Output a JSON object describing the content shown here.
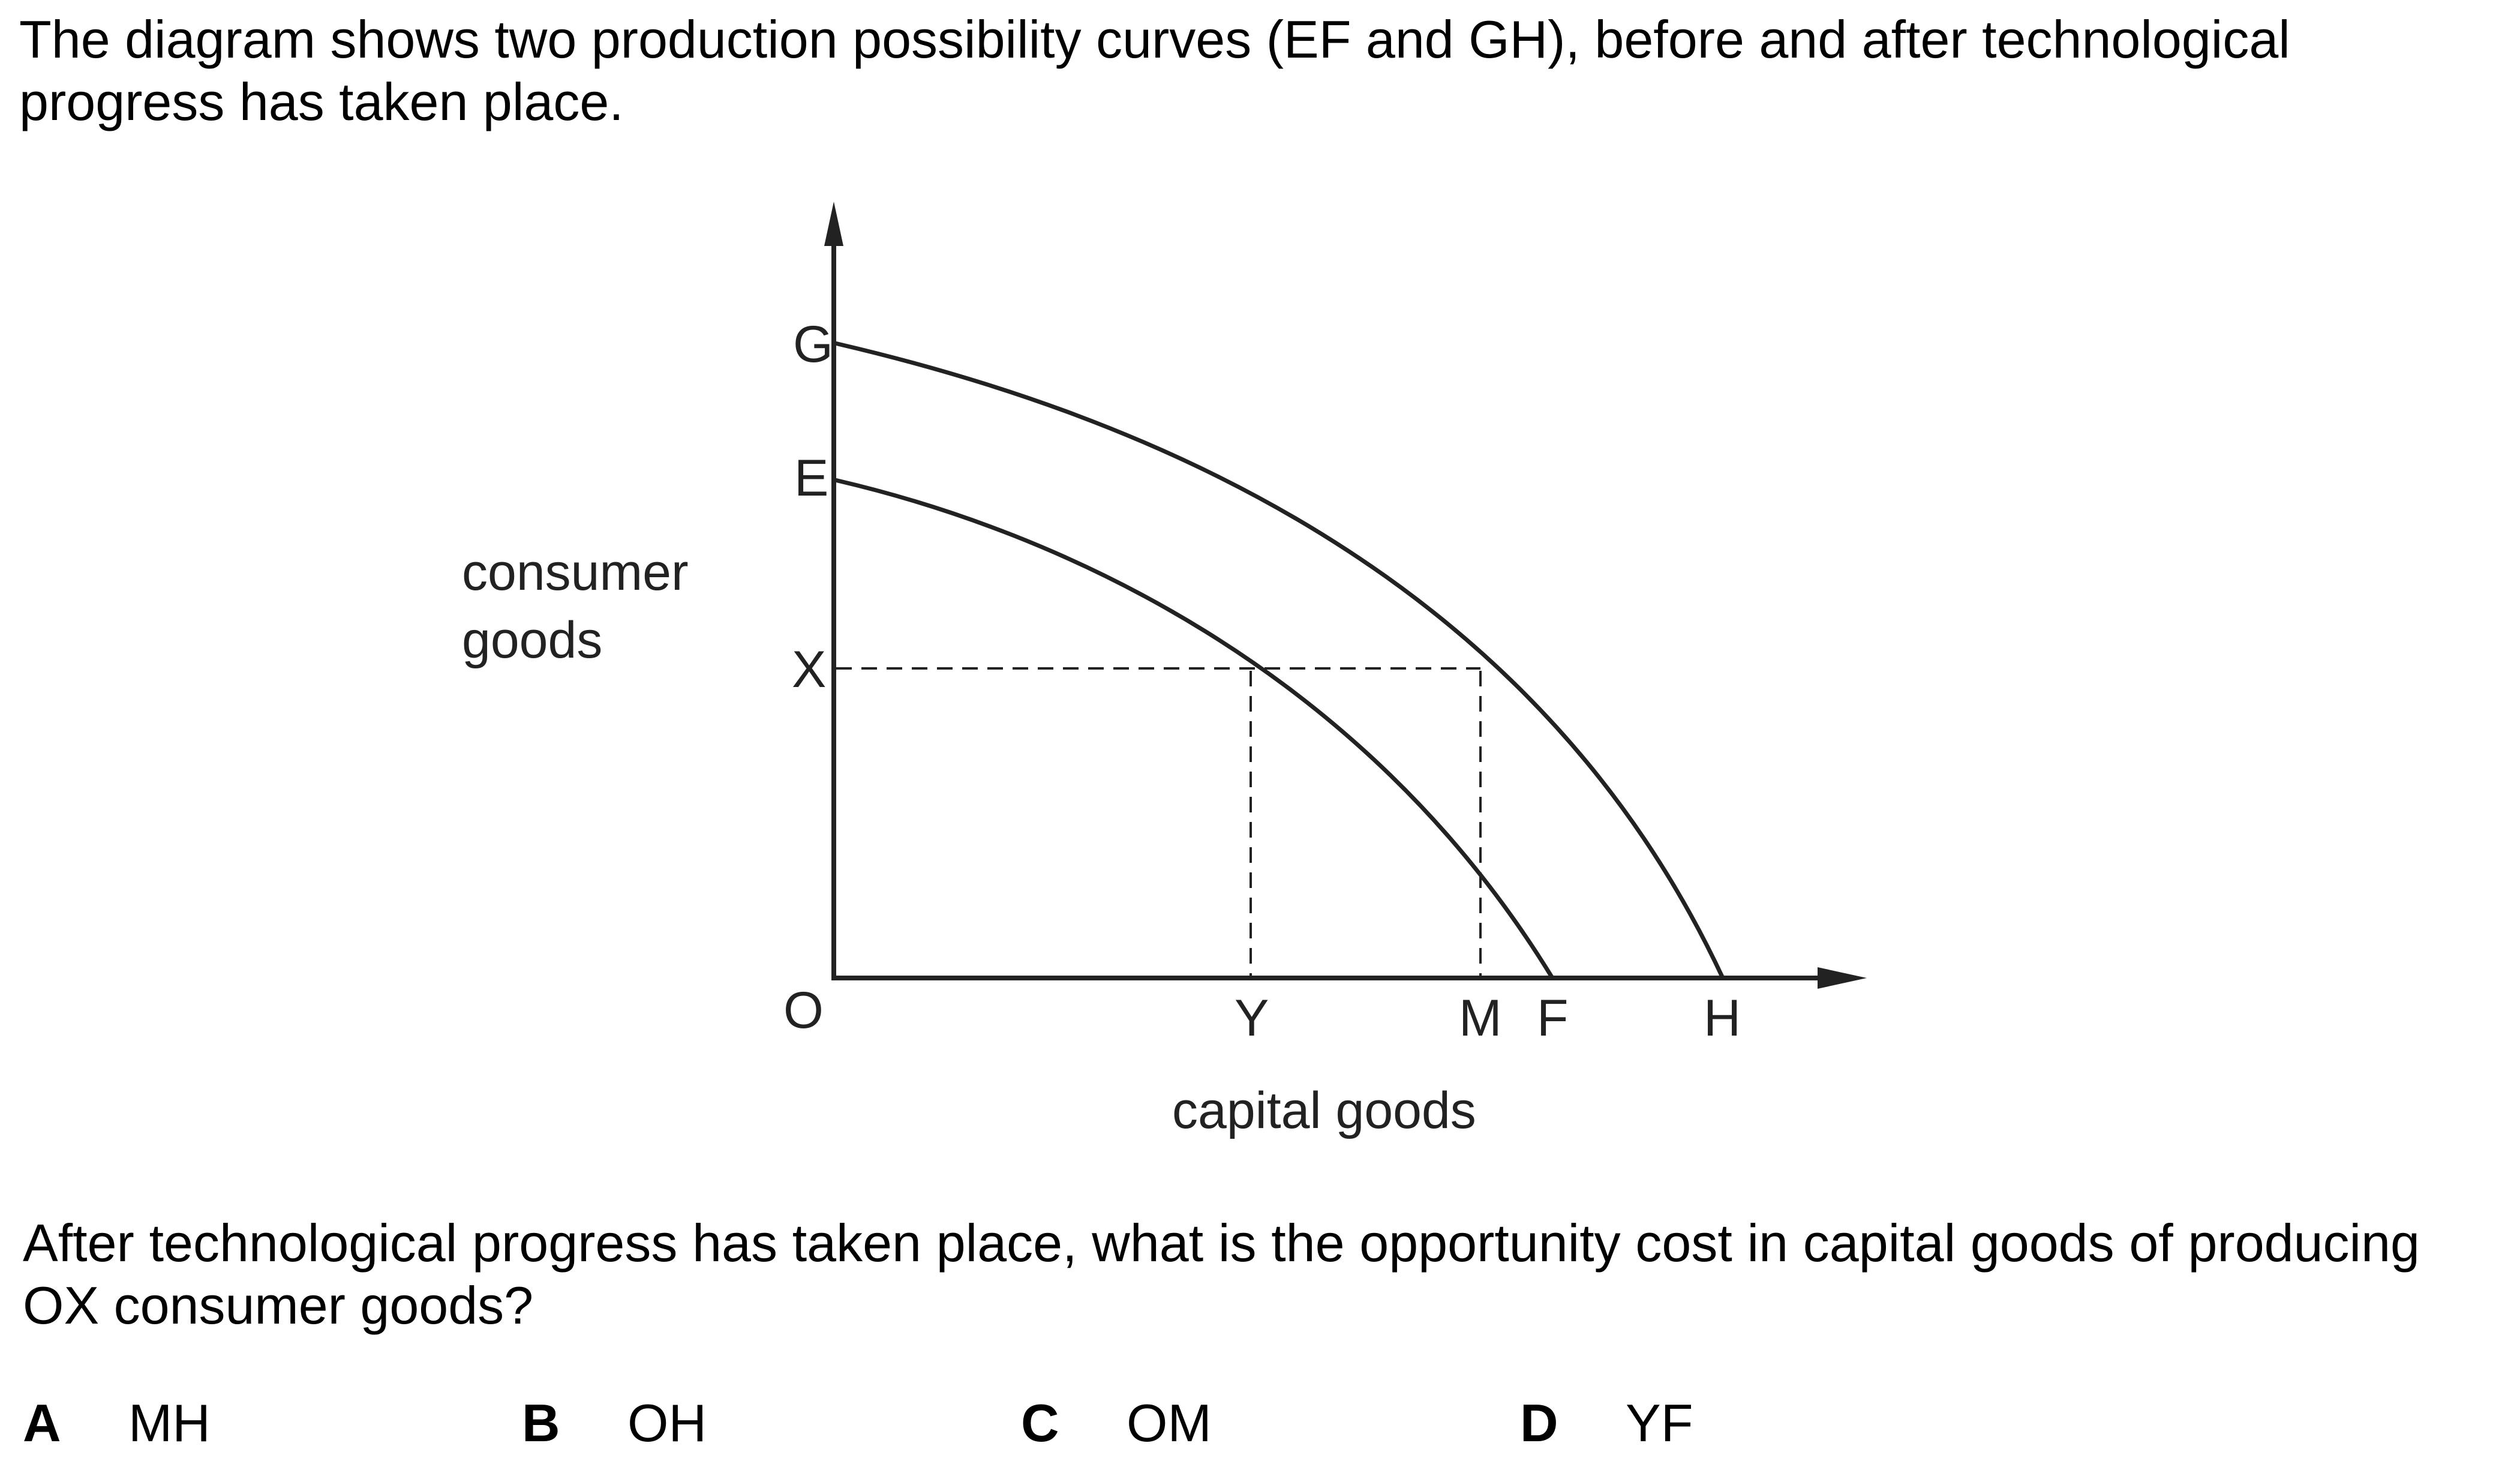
{
  "intro_text": "The diagram shows two production possibility curves (EF and GH), before and after technological progress has taken place.",
  "diagram": {
    "y_axis_label_line1": "consumer",
    "y_axis_label_line2": "goods",
    "x_axis_label": "capital goods",
    "point_labels": {
      "origin": "O",
      "G": "G",
      "E": "E",
      "X": "X",
      "Y": "Y",
      "M": "M",
      "F": "F",
      "H": "H"
    },
    "curves": [
      {
        "name": "EF"
      },
      {
        "name": "GH"
      }
    ]
  },
  "question_text": "After technological progress has taken place, what is the opportunity cost in capital goods of producing OX consumer goods?",
  "options": [
    {
      "letter": "A",
      "text": "MH"
    },
    {
      "letter": "B",
      "text": "OH"
    },
    {
      "letter": "C",
      "text": "OM"
    },
    {
      "letter": "D",
      "text": "YF"
    }
  ]
}
